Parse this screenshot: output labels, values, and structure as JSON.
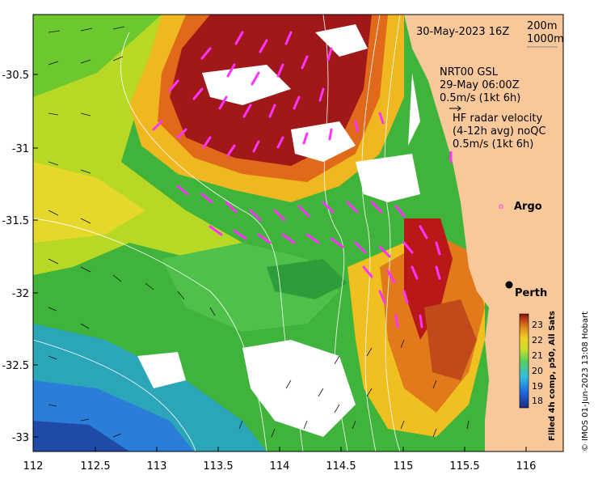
{
  "header": {
    "date_label": "30-May-2023 16Z",
    "contour_200": "200m",
    "contour_1000": "1000m"
  },
  "model": {
    "name": "NRT00 GSL",
    "time": "29-May 06:00Z",
    "scale": "0.5m/s (1kt 6h)"
  },
  "radar": {
    "line1": "HF radar velocity",
    "line2": "(4-12h avg) noQC",
    "scale": "0.5m/s (1kt 6h)"
  },
  "places": {
    "argo_marker": "o",
    "argo": "Argo",
    "perth": "Perth"
  },
  "axes": {
    "x_ticks": [
      "112",
      "112.5",
      "113",
      "113.5",
      "114",
      "114.5",
      "115",
      "115.5",
      "116"
    ],
    "y_ticks": [
      "-30.5",
      "-31",
      "-31.5",
      "-32",
      "-32.5",
      "-33"
    ]
  },
  "colorbar": {
    "label": "Filled 4h comp, p50, All Sats",
    "ticks": [
      "23",
      "22",
      "21",
      "20",
      "19",
      "18"
    ]
  },
  "credit": "© IMOS 01-Jun-2023 13:08 Hobart",
  "colors": {
    "land": "#f9c89a",
    "radar_arrow": "#ff33ff",
    "perth_marker": "#000000"
  }
}
